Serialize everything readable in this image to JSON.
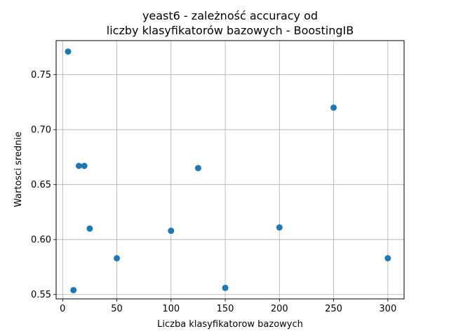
{
  "chart_data": {
    "type": "scatter",
    "title_lines": [
      "yeast6 - zależność accuracy od",
      "liczby klasyfikatorów bazowych - BoostingIB"
    ],
    "xlabel": "Liczba klasyfikatorow bazowych",
    "ylabel": "Wartosci srednie",
    "xlim": [
      -6,
      315
    ],
    "ylim": [
      0.546,
      0.781
    ],
    "xticks": [
      0,
      50,
      100,
      150,
      200,
      250,
      300
    ],
    "yticks": [
      0.55,
      0.6,
      0.65,
      0.7,
      0.75
    ],
    "ytick_labels": [
      "0.55",
      "0.60",
      "0.65",
      "0.70",
      "0.75"
    ],
    "grid": true,
    "marker_color": "#1f77b4",
    "x": [
      5,
      10,
      15,
      20,
      25,
      50,
      100,
      125,
      150,
      200,
      250,
      300
    ],
    "y": [
      0.771,
      0.554,
      0.667,
      0.667,
      0.61,
      0.583,
      0.608,
      0.665,
      0.556,
      0.611,
      0.72,
      0.583
    ]
  }
}
